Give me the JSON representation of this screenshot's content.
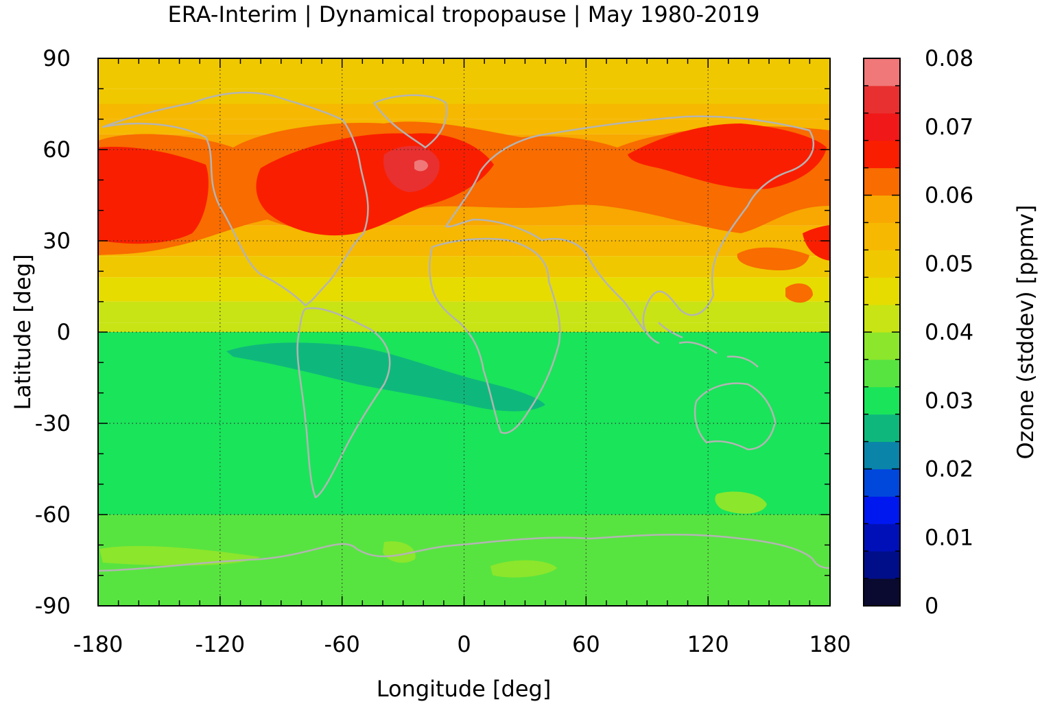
{
  "chart_data": {
    "type": "heatmap",
    "title": "ERA-Interim | Dynamical tropopause | May 1980-2019",
    "xlabel": "Longitude [deg]",
    "ylabel": "Latitude [deg]",
    "colorbar_label": "Ozone (stddev) [ppmv]",
    "xlim": [
      -180,
      180
    ],
    "ylim": [
      -90,
      90
    ],
    "x_ticks": [
      -180,
      -120,
      -60,
      0,
      60,
      120,
      180
    ],
    "x_tick_labels": [
      "-180",
      "-120",
      "-60",
      "0",
      "60",
      "120",
      "180"
    ],
    "y_ticks": [
      90,
      60,
      30,
      0,
      -30,
      -60,
      -90
    ],
    "y_tick_labels": [
      "90",
      "60",
      "30",
      "0",
      "-30",
      "-60",
      "-90"
    ],
    "grid": true,
    "coastlines": true,
    "colorbar": {
      "min": 0,
      "max": 0.08,
      "step": 0.004,
      "ticks": [
        0,
        0.01,
        0.02,
        0.03,
        0.04,
        0.05,
        0.06,
        0.07,
        0.08
      ],
      "tick_labels": [
        "0",
        "0.01",
        "0.02",
        "0.03",
        "0.04",
        "0.05",
        "0.06",
        "0.07",
        "0.08"
      ],
      "colors": [
        "#0a0a30",
        "#000e8a",
        "#0010b8",
        "#0018f0",
        "#0048dc",
        "#0a84a8",
        "#0eb87c",
        "#1ae45a",
        "#58e440",
        "#8ce62c",
        "#c8e414",
        "#e6dc00",
        "#f0c800",
        "#f6b800",
        "#f8a800",
        "#f86c00",
        "#fa1e00",
        "#f01818",
        "#e83030",
        "#f07878",
        "#ffcccc"
      ]
    },
    "latitude_profile": [
      {
        "lat": [
          90,
          80
        ],
        "value": 0.05
      },
      {
        "lat": [
          80,
          75
        ],
        "value": 0.048
      },
      {
        "lat": [
          75,
          70
        ],
        "value": 0.052
      },
      {
        "lat": [
          70,
          65
        ],
        "value": 0.054
      },
      {
        "lat": [
          65,
          60
        ],
        "value": 0.056
      },
      {
        "lat": [
          60,
          45
        ],
        "value": 0.058
      },
      {
        "lat": [
          45,
          35
        ],
        "value": 0.056
      },
      {
        "lat": [
          35,
          25
        ],
        "value": 0.052
      },
      {
        "lat": [
          25,
          18
        ],
        "value": 0.048
      },
      {
        "lat": [
          18,
          10
        ],
        "value": 0.044
      },
      {
        "lat": [
          10,
          3
        ],
        "value": 0.042
      },
      {
        "lat": [
          3,
          0
        ],
        "value": 0.04
      },
      {
        "lat": [
          0,
          -60
        ],
        "value": 0.03
      },
      {
        "lat": [
          -60,
          -90
        ],
        "value": 0.034
      }
    ]
  }
}
